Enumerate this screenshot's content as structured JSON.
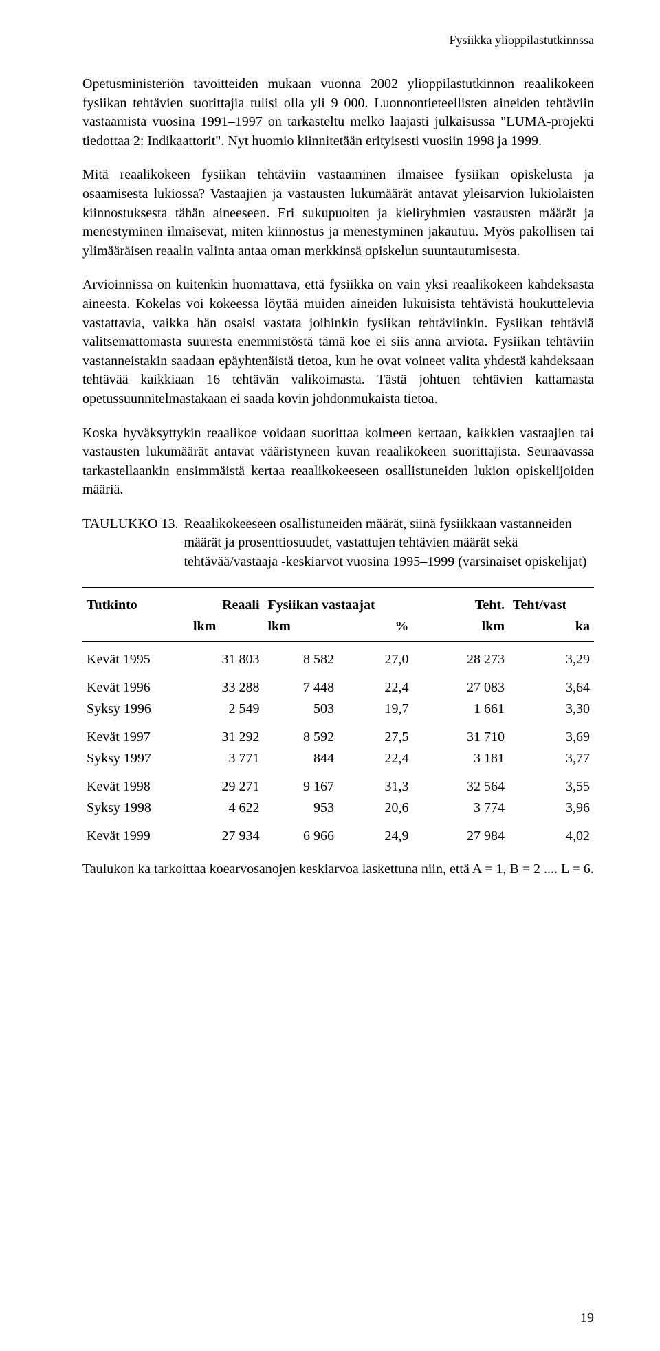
{
  "running_head": "Fysiikka ylioppilastutkinnssa",
  "paragraphs": {
    "p1": "Opetusministeriön tavoitteiden mukaan vuonna 2002 ylioppilastutkinnon reaalikokeen fysiikan tehtävien suorittajia tulisi olla yli 9 000. Luonnontieteellisten aineiden tehtäviin vastaamista vuosina 1991–1997 on tarkasteltu melko laajasti julkaisussa \"LUMA-projekti tiedottaa 2: Indikaattorit\". Nyt huomio kiinnitetään erityisesti vuosiin 1998 ja 1999.",
    "p2": "Mitä reaalikokeen fysiikan tehtäviin vastaaminen ilmaisee fysiikan opiskelusta ja osaamisesta lukiossa? Vastaajien ja vastausten lukumäärät antavat yleisarvion lukiolaisten kiinnostuksesta tähän aineeseen. Eri sukupuolten ja kieliryhmien vastausten määrät ja menestyminen ilmaisevat, miten kiinnostus ja menestyminen jakautuu. Myös pakollisen tai ylimääräisen reaalin valinta antaa oman merkkinsä opiskelun suuntautumisesta.",
    "p3": "Arvioinnissa on kuitenkin huomattava, että fysiikka on vain yksi reaalikokeen kahdeksasta aineesta. Kokelas voi kokeessa löytää muiden aineiden lukuisista tehtävistä houkuttelevia vastattavia, vaikka hän osaisi vastata joihinkin fysiikan tehtäviinkin. Fysiikan tehtäviä valitsemattomasta suuresta enemmistöstä tämä koe ei siis anna arviota. Fysiikan tehtäviin vastanneistakin saadaan epäyhtenäistä tietoa, kun he ovat voineet valita yhdestä kahdeksaan tehtävää kaikkiaan 16 tehtävän valikoimasta. Tästä johtuen tehtävien kattamasta opetussuunnitelmastakaan ei saada kovin johdonmukaista tietoa.",
    "p4": "Koska hyväksyttykin reaalikoe voidaan suorittaa kolmeen kertaan, kaikkien vastaajien tai vastausten lukumäärät antavat vääristyneen kuvan reaalikokeen suorittajista. Seuraavassa tarkastellaankin ensimmäistä kertaa reaalikokeeseen osallistuneiden lukion opiskelijoiden määriä."
  },
  "table13": {
    "caption_label": "TAULUKKO 13.",
    "caption_text": "Reaalikokeeseen osallistuneiden määrät, siinä fysiikkaan vastanneiden määrät ja prosenttiosuudet, vastattujen tehtävien määrät sekä tehtävää/vastaaja -keskiarvot vuosina 1995–1999 (varsinaiset opiskelijat)",
    "head1": {
      "c0": "Tutkinto",
      "c1": "Reaali",
      "c2": "Fysiikan vastaajat",
      "c3": "Teht.",
      "c4": "Teht/vast"
    },
    "head2": {
      "c1": "lkm",
      "c2": "lkm",
      "c3": "%",
      "c4": "lkm",
      "c5": "ka"
    },
    "rows": [
      {
        "tutkinto": "Kevät 1995",
        "reaali": "31 803",
        "vast_lkm": "8 582",
        "vast_pct": "27,0",
        "teht": "28 273",
        "ka": "3,29",
        "group_first": true
      },
      {
        "tutkinto": "Kevät 1996",
        "reaali": "33 288",
        "vast_lkm": "7 448",
        "vast_pct": "22,4",
        "teht": "27 083",
        "ka": "3,64",
        "group_first": true
      },
      {
        "tutkinto": "Syksy 1996",
        "reaali": "2 549",
        "vast_lkm": "503",
        "vast_pct": "19,7",
        "teht": "1 661",
        "ka": "3,30"
      },
      {
        "tutkinto": "Kevät 1997",
        "reaali": "31 292",
        "vast_lkm": "8 592",
        "vast_pct": "27,5",
        "teht": "31 710",
        "ka": "3,69",
        "group_first": true
      },
      {
        "tutkinto": "Syksy 1997",
        "reaali": "3 771",
        "vast_lkm": "844",
        "vast_pct": "22,4",
        "teht": "3 181",
        "ka": "3,77"
      },
      {
        "tutkinto": "Kevät 1998",
        "reaali": "29 271",
        "vast_lkm": "9 167",
        "vast_pct": "31,3",
        "teht": "32 564",
        "ka": "3,55",
        "group_first": true
      },
      {
        "tutkinto": "Syksy 1998",
        "reaali": "4 622",
        "vast_lkm": "953",
        "vast_pct": "20,6",
        "teht": "3 774",
        "ka": "3,96"
      },
      {
        "tutkinto": "Kevät 1999",
        "reaali": "27 934",
        "vast_lkm": "6 966",
        "vast_pct": "24,9",
        "teht": "27 984",
        "ka": "4,02",
        "group_first": true
      }
    ],
    "footnote": "Taulukon ka tarkoittaa koearvosanojen keskiarvoa laskettuna niin, että A = 1, B = 2 .... L = 6."
  },
  "page_number": "19"
}
